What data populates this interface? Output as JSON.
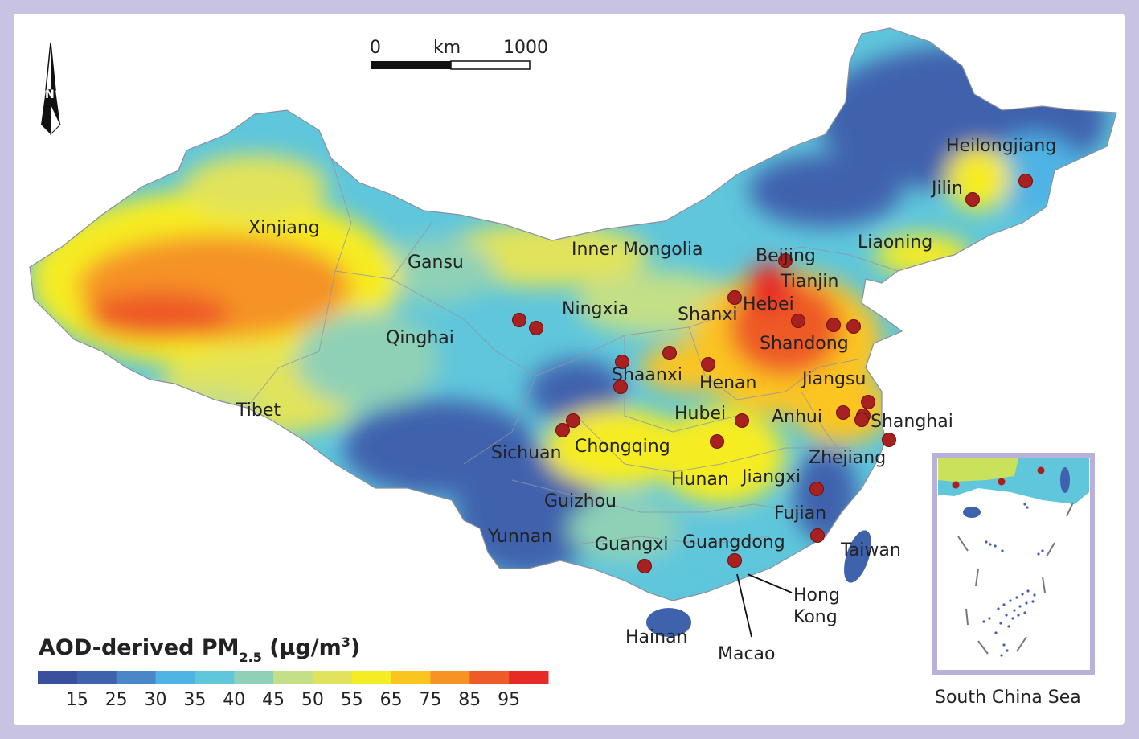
{
  "scale_bar": {
    "start": "0",
    "unit": "km",
    "end": "1000"
  },
  "north_arrow": {
    "letter": "N",
    "icon": "north-arrow-icon"
  },
  "provinces": [
    "Xinjiang",
    "Gansu",
    "Inner Mongolia",
    "Beijing",
    "Tianjin",
    "Hebei",
    "Shanxi",
    "Ningxia",
    "Qinghai",
    "Shandong",
    "Shaanxi",
    "Henan",
    "Jiangsu",
    "Tibet",
    "Hubei",
    "Anhui",
    "Shanghai",
    "Sichuan",
    "Chongqing",
    "Zhejiang",
    "Hunan",
    "Jiangxi",
    "Guizhou",
    "Fujian",
    "Yunnan",
    "Guangxi",
    "Guangdong",
    "Taiwan",
    "Hong",
    "Kong",
    "Hainan",
    "Macao",
    "Heilongjiang",
    "Jilin",
    "Liaoning"
  ],
  "legend": {
    "title_main": "AOD-derived PM",
    "title_sub": "2.5",
    "title_unit": " (μg/m",
    "title_sup": "3",
    "title_close": ")",
    "colors": [
      "#3a4f9e",
      "#3f62ad",
      "#4a87c9",
      "#4fb3e4",
      "#5fc6dc",
      "#8fd1b6",
      "#c3df87",
      "#e1e35a",
      "#f6ec23",
      "#fbc520",
      "#f59325",
      "#ee5a28",
      "#e82a26"
    ],
    "ticks": [
      "15",
      "25",
      "30",
      "35",
      "40",
      "45",
      "50",
      "55",
      "65",
      "75",
      "85",
      "95"
    ]
  },
  "inset": {
    "caption": "South China Sea"
  },
  "colors": {
    "frame": "#c9c3e3",
    "city_marker": "#a8201f"
  }
}
